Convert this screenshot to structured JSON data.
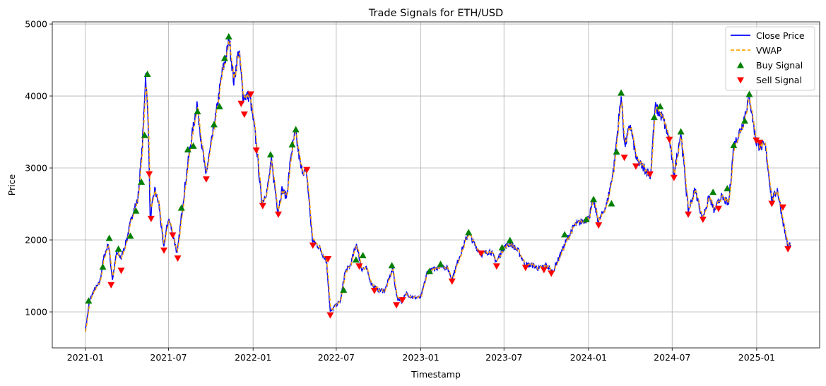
{
  "chart_data": {
    "type": "line",
    "title": "Trade Signals for ETH/USD",
    "xlabel": "Timestamp",
    "ylabel": "Price",
    "xlim": [
      "2020-10-21",
      "2025-05-18"
    ],
    "ylim": [
      500,
      5030
    ],
    "x_ticks": [
      "2021-01",
      "2021-07",
      "2022-01",
      "2022-07",
      "2023-01",
      "2023-07",
      "2024-01",
      "2024-07",
      "2025-01"
    ],
    "y_ticks": [
      1000,
      2000,
      3000,
      4000,
      5000
    ],
    "grid": true,
    "legend_position": "top-right",
    "colors": {
      "close": "#0000ff",
      "vwap": "#ffa500",
      "buy": "#008000",
      "sell": "#ff0000"
    },
    "series": [
      {
        "name": "Close Price",
        "style": "solid",
        "points": [
          [
            "2021-01-01",
            740
          ],
          [
            "2021-01-10",
            1150
          ],
          [
            "2021-01-20",
            1300
          ],
          [
            "2021-02-01",
            1400
          ],
          [
            "2021-02-10",
            1750
          ],
          [
            "2021-02-20",
            1950
          ],
          [
            "2021-03-01",
            1450
          ],
          [
            "2021-03-10",
            1820
          ],
          [
            "2021-03-20",
            1750
          ],
          [
            "2021-04-01",
            2000
          ],
          [
            "2021-04-15",
            2400
          ],
          [
            "2021-04-25",
            2550
          ],
          [
            "2021-05-05",
            3300
          ],
          [
            "2021-05-12",
            4300
          ],
          [
            "2021-05-18",
            3600
          ],
          [
            "2021-05-22",
            2300
          ],
          [
            "2021-06-01",
            2700
          ],
          [
            "2021-06-10",
            2500
          ],
          [
            "2021-06-20",
            1900
          ],
          [
            "2021-07-01",
            2300
          ],
          [
            "2021-07-10",
            2100
          ],
          [
            "2021-07-20",
            1800
          ],
          [
            "2021-08-01",
            2500
          ],
          [
            "2021-08-15",
            3200
          ],
          [
            "2021-09-01",
            3900
          ],
          [
            "2021-09-10",
            3400
          ],
          [
            "2021-09-20",
            2900
          ],
          [
            "2021-10-01",
            3300
          ],
          [
            "2021-10-15",
            3850
          ],
          [
            "2021-10-25",
            4300
          ],
          [
            "2021-11-05",
            4600
          ],
          [
            "2021-11-10",
            4800
          ],
          [
            "2021-11-20",
            4200
          ],
          [
            "2021-12-01",
            4650
          ],
          [
            "2021-12-10",
            4000
          ],
          [
            "2021-12-25",
            4000
          ],
          [
            "2022-01-05",
            3500
          ],
          [
            "2022-01-10",
            3200
          ],
          [
            "2022-01-20",
            2500
          ],
          [
            "2022-02-01",
            2700
          ],
          [
            "2022-02-10",
            3100
          ],
          [
            "2022-02-24",
            2400
          ],
          [
            "2022-03-05",
            2700
          ],
          [
            "2022-03-15",
            2600
          ],
          [
            "2022-03-25",
            3200
          ],
          [
            "2022-04-03",
            3500
          ],
          [
            "2022-04-15",
            3000
          ],
          [
            "2022-04-28",
            2900
          ],
          [
            "2022-05-10",
            2000
          ],
          [
            "2022-05-25",
            1900
          ],
          [
            "2022-06-10",
            1700
          ],
          [
            "2022-06-18",
            1000
          ],
          [
            "2022-07-01",
            1100
          ],
          [
            "2022-07-10",
            1150
          ],
          [
            "2022-07-20",
            1550
          ],
          [
            "2022-08-01",
            1650
          ],
          [
            "2022-08-14",
            1950
          ],
          [
            "2022-08-25",
            1600
          ],
          [
            "2022-09-05",
            1600
          ],
          [
            "2022-09-15",
            1400
          ],
          [
            "2022-10-01",
            1300
          ],
          [
            "2022-10-15",
            1300
          ],
          [
            "2022-11-01",
            1600
          ],
          [
            "2022-11-10",
            1200
          ],
          [
            "2022-11-20",
            1150
          ],
          [
            "2022-12-01",
            1250
          ],
          [
            "2022-12-15",
            1200
          ],
          [
            "2023-01-01",
            1200
          ],
          [
            "2023-01-15",
            1550
          ],
          [
            "2023-02-01",
            1600
          ],
          [
            "2023-02-15",
            1650
          ],
          [
            "2023-03-01",
            1600
          ],
          [
            "2023-03-10",
            1450
          ],
          [
            "2023-03-25",
            1750
          ],
          [
            "2023-04-15",
            2100
          ],
          [
            "2023-05-01",
            1900
          ],
          [
            "2023-05-15",
            1800
          ],
          [
            "2023-06-01",
            1850
          ],
          [
            "2023-06-15",
            1700
          ],
          [
            "2023-07-01",
            1900
          ],
          [
            "2023-07-15",
            1950
          ],
          [
            "2023-08-01",
            1850
          ],
          [
            "2023-08-17",
            1650
          ],
          [
            "2023-09-01",
            1650
          ],
          [
            "2023-09-15",
            1600
          ],
          [
            "2023-10-01",
            1650
          ],
          [
            "2023-10-15",
            1550
          ],
          [
            "2023-11-01",
            1800
          ],
          [
            "2023-11-15",
            2000
          ],
          [
            "2023-12-01",
            2200
          ],
          [
            "2023-12-15",
            2250
          ],
          [
            "2024-01-01",
            2300
          ],
          [
            "2024-01-12",
            2550
          ],
          [
            "2024-01-23",
            2250
          ],
          [
            "2024-02-10",
            2500
          ],
          [
            "2024-02-25",
            3000
          ],
          [
            "2024-03-12",
            4000
          ],
          [
            "2024-03-20",
            3300
          ],
          [
            "2024-04-01",
            3600
          ],
          [
            "2024-04-15",
            3100
          ],
          [
            "2024-05-01",
            3000
          ],
          [
            "2024-05-15",
            2900
          ],
          [
            "2024-05-25",
            3850
          ],
          [
            "2024-06-10",
            3700
          ],
          [
            "2024-06-25",
            3400
          ],
          [
            "2024-07-05",
            2900
          ],
          [
            "2024-07-20",
            3500
          ],
          [
            "2024-08-05",
            2400
          ],
          [
            "2024-08-20",
            2700
          ],
          [
            "2024-09-05",
            2300
          ],
          [
            "2024-09-20",
            2600
          ],
          [
            "2024-10-01",
            2400
          ],
          [
            "2024-10-15",
            2600
          ],
          [
            "2024-11-01",
            2500
          ],
          [
            "2024-11-12",
            3300
          ],
          [
            "2024-12-01",
            3600
          ],
          [
            "2024-12-16",
            4000
          ],
          [
            "2024-12-31",
            3350
          ],
          [
            "2025-01-10",
            3300
          ],
          [
            "2025-01-20",
            3300
          ],
          [
            "2025-02-03",
            2550
          ],
          [
            "2025-02-15",
            2700
          ],
          [
            "2025-03-01",
            2200
          ],
          [
            "2025-03-10",
            1900
          ],
          [
            "2025-03-15",
            1950
          ]
        ]
      },
      {
        "name": "VWAP",
        "style": "dashed"
      }
    ],
    "signals": {
      "buy": {
        "name": "Buy Signal",
        "x": [
          "2021-01-08",
          "2021-02-08",
          "2021-02-22",
          "2021-03-14",
          "2021-04-09",
          "2021-04-21",
          "2021-05-03",
          "2021-05-10",
          "2021-05-16",
          "2021-07-29",
          "2021-08-12",
          "2021-08-24",
          "2021-09-02",
          "2021-10-08",
          "2021-10-20",
          "2021-10-31",
          "2021-11-09",
          "2022-02-08",
          "2022-03-27",
          "2022-04-04",
          "2022-07-17",
          "2022-08-13",
          "2022-08-28",
          "2022-10-30",
          "2023-01-20",
          "2023-02-13",
          "2023-04-15",
          "2023-06-27",
          "2023-07-14",
          "2023-11-10",
          "2023-12-27",
          "2024-01-12",
          "2024-02-20",
          "2024-03-02",
          "2024-03-12",
          "2024-05-23",
          "2024-06-05",
          "2024-07-20",
          "2024-09-28",
          "2024-10-29",
          "2024-11-12",
          "2024-12-06",
          "2024-12-16"
        ],
        "y": [
          1150,
          1620,
          2020,
          1870,
          2050,
          2400,
          2800,
          3450,
          4300,
          2440,
          3250,
          3300,
          3780,
          3600,
          3850,
          4520,
          4820,
          3180,
          3320,
          3530,
          1300,
          1720,
          1780,
          1640,
          1560,
          1660,
          2100,
          1890,
          1990,
          2070,
          2280,
          2560,
          2500,
          3220,
          4040,
          3700,
          3850,
          3500,
          2660,
          2710,
          3310,
          3650,
          4020
        ]
      },
      "sell": {
        "name": "Sell Signal",
        "x": [
          "2021-02-26",
          "2021-03-20",
          "2021-05-20",
          "2021-05-24",
          "2021-06-21",
          "2021-07-10",
          "2021-07-21",
          "2021-09-21",
          "2021-12-06",
          "2021-12-13",
          "2021-12-27",
          "2022-01-08",
          "2022-01-22",
          "2022-02-25",
          "2022-04-28",
          "2022-05-11",
          "2022-06-13",
          "2022-06-18",
          "2022-08-20",
          "2022-09-22",
          "2022-11-09",
          "2022-11-22",
          "2023-03-10",
          "2023-05-12",
          "2023-06-15",
          "2023-08-17",
          "2023-09-26",
          "2023-10-12",
          "2024-01-23",
          "2024-03-19",
          "2024-04-13",
          "2024-05-14",
          "2024-06-25",
          "2024-07-05",
          "2024-08-05",
          "2024-09-06",
          "2024-10-10",
          "2024-12-31",
          "2025-01-08",
          "2025-02-03",
          "2025-02-27",
          "2025-03-10"
        ],
        "y": [
          1380,
          1580,
          2920,
          2300,
          1860,
          2070,
          1750,
          2850,
          3900,
          3750,
          4030,
          3250,
          2480,
          2360,
          2980,
          1930,
          1740,
          960,
          1640,
          1300,
          1100,
          1170,
          1430,
          1820,
          1640,
          1620,
          1590,
          1540,
          2210,
          3150,
          3030,
          2920,
          3400,
          2870,
          2360,
          2290,
          2440,
          3390,
          3360,
          2510,
          2460,
          1880
        ]
      }
    }
  },
  "legend": {
    "close": "Close Price",
    "vwap": "VWAP",
    "buy": "Buy Signal",
    "sell": "Sell Signal"
  }
}
